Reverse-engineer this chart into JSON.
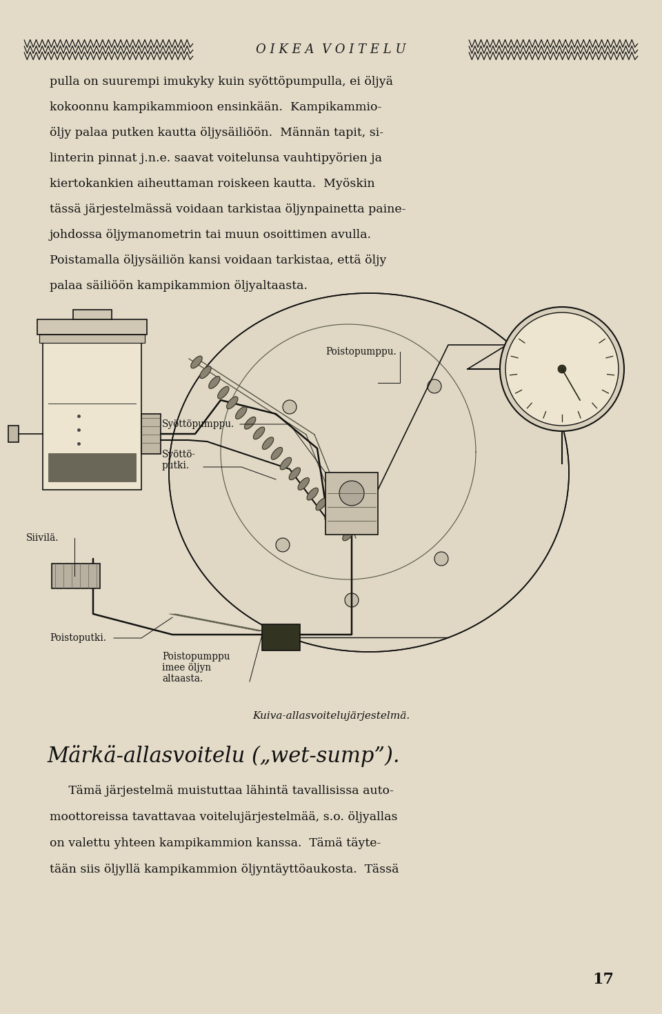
{
  "bg_color": "#e3dbc8",
  "page_width": 9.6,
  "page_height": 14.7,
  "header_text": "O I K E A  V O I T E L U",
  "header_color": "#1a1a1a",
  "body_text_color": "#111111",
  "body_fontsize": 12.5,
  "body_indent_in": 0.75,
  "paragraph1_lines": [
    "pulla on suurempi imukyky kuin syöttöpumpulla, ei öljyä",
    "kokoonnu kampikammioon ensinkään.  Kampikammio-",
    "öljy palaa putken kautta öljysäiliöön.  Männän tapit, si-",
    "linterin pinnat j.n.e. saavat voitelunsa vauhtipyörien ja",
    "kiertokankien aiheuttaman roiskeen kautta.  Myöskin",
    "tässä järjestelmässä voidaan tarkistaa öljynpainetta paine-",
    "johdossa öljymanometrin tai muun osoittimen avulla.",
    "Poistamalla öljysäiliön kansi voidaan tarkistaa, että öljy",
    "palaa säiliöön kampikammion öljyaltaasta."
  ],
  "italic_heading": "Märkä-allasvoitelu („wet-sump”).",
  "italic_heading_fontsize": 22,
  "paragraph2_lines": [
    "     Tämä järjestelmä muistuttaa lähintä tavallisissa auto-",
    "moottoreissa tavattavaa voitelujärjestelmää, s.o. öljyallas",
    "on valettu yhteen kampikammion kanssa.  Tämä täyte-",
    "tään siis öljyllä kampikammion öljyntäyttöaukosta.  Tässä"
  ],
  "page_num": "17",
  "diagram_caption": "Kuiva-allasvoitelujärjestelmä.",
  "label_syottopumppu": "Syöttöpumppu.",
  "label_syottoputki": "Syöttö-\nputki.",
  "label_siivilä": "Siivilä.",
  "label_poistoputki": "Poistoputki.",
  "label_poistopumppu": "Poistopumppu.",
  "label_poistopumppu_imee": "Poistopumppu\nimee öljyn\naltaasta."
}
